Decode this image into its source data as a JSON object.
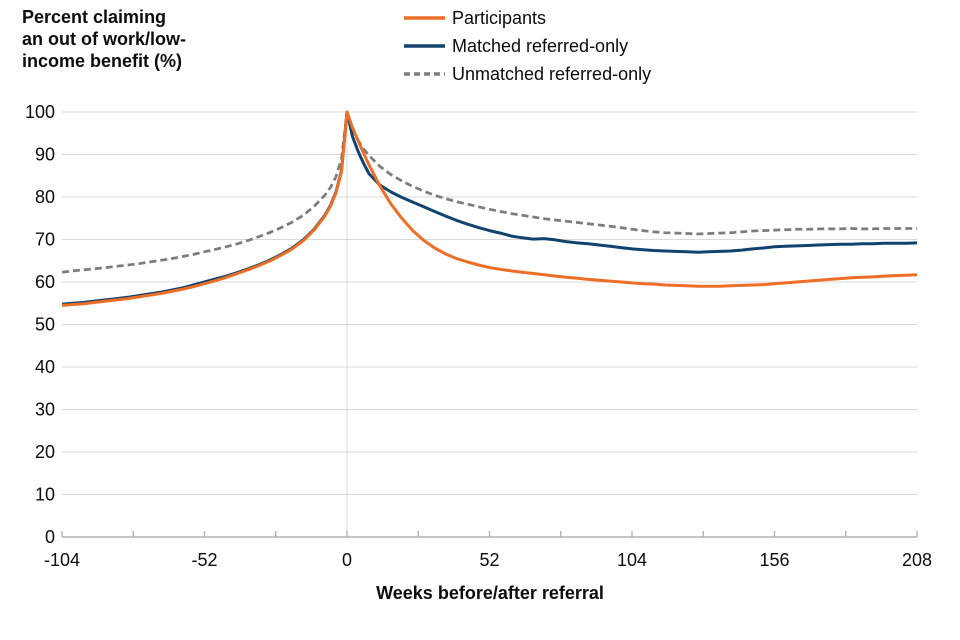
{
  "chart_data": {
    "type": "line",
    "title": "",
    "ylabel": "Percent claiming\nan out of work/low-\nincome benefit (%)",
    "xlabel": "Weeks before/after referral",
    "xlim": [
      -104,
      208
    ],
    "ylim": [
      0,
      100
    ],
    "x_tick_labels": [
      -104,
      -52,
      0,
      52,
      104,
      156,
      208
    ],
    "x_minor_tick_step": 26,
    "y_ticks": [
      0,
      10,
      20,
      30,
      40,
      50,
      60,
      70,
      80,
      90,
      100
    ],
    "grid": {
      "horizontal": true,
      "vertical_gridline_at_week": 0
    },
    "legend_position": "top",
    "colors": {
      "gridline": "#d9d9d9",
      "axis": "#b3b3b3",
      "text": "#0b0c0c"
    },
    "x": [
      -104,
      -100,
      -96,
      -92,
      -88,
      -84,
      -80,
      -76,
      -72,
      -68,
      -64,
      -60,
      -56,
      -52,
      -48,
      -44,
      -40,
      -36,
      -32,
      -28,
      -24,
      -20,
      -16,
      -12,
      -8,
      -6,
      -4,
      -2,
      0,
      2,
      4,
      6,
      8,
      12,
      16,
      20,
      24,
      28,
      32,
      36,
      40,
      44,
      48,
      52,
      56,
      60,
      64,
      68,
      72,
      76,
      80,
      84,
      88,
      92,
      96,
      100,
      104,
      108,
      112,
      116,
      120,
      124,
      128,
      132,
      136,
      140,
      144,
      148,
      152,
      156,
      160,
      164,
      168,
      172,
      176,
      180,
      184,
      188,
      192,
      196,
      200,
      204,
      208
    ],
    "series": [
      {
        "name": "Participants",
        "color": "#ED6E26",
        "dash": null,
        "width": 3,
        "values": [
          54.5,
          54.7,
          54.9,
          55.2,
          55.5,
          55.8,
          56.1,
          56.5,
          56.9,
          57.3,
          57.8,
          58.3,
          58.9,
          59.6,
          60.3,
          61.1,
          62.0,
          62.9,
          63.9,
          65.0,
          66.3,
          67.8,
          69.7,
          72.2,
          75.6,
          77.9,
          81.0,
          86.0,
          100,
          96.3,
          93.3,
          90.4,
          87.6,
          82.6,
          78.4,
          75.0,
          72.1,
          69.8,
          68.0,
          66.6,
          65.5,
          64.7,
          64.0,
          63.4,
          63.0,
          62.6,
          62.3,
          62.0,
          61.7,
          61.4,
          61.1,
          60.9,
          60.6,
          60.4,
          60.2,
          60.0,
          59.8,
          59.6,
          59.5,
          59.3,
          59.2,
          59.1,
          59.0,
          59.0,
          59.0,
          59.1,
          59.2,
          59.3,
          59.4,
          59.6,
          59.8,
          60.0,
          60.2,
          60.4,
          60.6,
          60.8,
          61.0,
          61.1,
          61.2,
          61.4,
          61.5,
          61.6,
          61.7
        ]
      },
      {
        "name": "Matched referred-only",
        "color": "#12436D",
        "dash": null,
        "width": 3,
        "values": [
          54.8,
          55.0,
          55.2,
          55.5,
          55.8,
          56.1,
          56.4,
          56.8,
          57.2,
          57.6,
          58.1,
          58.6,
          59.3,
          60.0,
          60.7,
          61.4,
          62.2,
          63.1,
          64.1,
          65.2,
          66.5,
          68.0,
          69.9,
          72.4,
          75.8,
          78.1,
          81.2,
          86.2,
          100,
          94.2,
          90.8,
          88.0,
          85.5,
          82.8,
          81.2,
          79.9,
          78.8,
          77.7,
          76.6,
          75.5,
          74.5,
          73.6,
          72.8,
          72.1,
          71.5,
          70.8,
          70.4,
          70.1,
          70.2,
          69.9,
          69.5,
          69.2,
          69.0,
          68.7,
          68.4,
          68.1,
          67.8,
          67.6,
          67.4,
          67.3,
          67.2,
          67.1,
          67.0,
          67.1,
          67.2,
          67.3,
          67.5,
          67.8,
          68.0,
          68.3,
          68.4,
          68.5,
          68.6,
          68.7,
          68.8,
          68.9,
          68.9,
          69.0,
          69.0,
          69.1,
          69.1,
          69.1,
          69.2
        ]
      },
      {
        "name": "Unmatched referred-only",
        "color": "#7D7D7D",
        "dash": "7 4",
        "width": 2.75,
        "values": [
          62.3,
          62.6,
          62.9,
          63.1,
          63.4,
          63.7,
          64.0,
          64.3,
          64.7,
          65.1,
          65.5,
          66.0,
          66.5,
          67.1,
          67.7,
          68.3,
          69.0,
          69.8,
          70.7,
          71.7,
          72.8,
          74.1,
          75.7,
          77.8,
          80.5,
          82.3,
          84.8,
          89.0,
          100,
          96.0,
          93.4,
          91.4,
          89.8,
          87.2,
          85.3,
          83.8,
          82.5,
          81.4,
          80.4,
          79.6,
          78.9,
          78.3,
          77.7,
          77.1,
          76.6,
          76.1,
          75.7,
          75.3,
          74.9,
          74.6,
          74.3,
          74.0,
          73.7,
          73.4,
          73.1,
          72.8,
          72.4,
          72.1,
          71.8,
          71.6,
          71.5,
          71.4,
          71.3,
          71.4,
          71.5,
          71.6,
          71.8,
          72.0,
          72.1,
          72.2,
          72.3,
          72.4,
          72.4,
          72.5,
          72.5,
          72.5,
          72.6,
          72.5,
          72.5,
          72.6,
          72.6,
          72.6,
          72.6
        ]
      }
    ]
  }
}
